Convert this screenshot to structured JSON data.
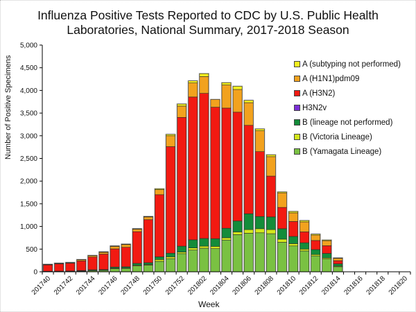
{
  "chart_data": {
    "type": "bar",
    "stacked": true,
    "title": "Influenza Positive Tests Reported to CDC by U.S. Public Health Laboratories, National Summary, 2017-2018 Season",
    "title_lines": [
      "Influenza Positive Tests Reported to CDC by U.S. Public Health",
      "Laboratories, National Summary, 2017-2018 Season"
    ],
    "xlabel": "Week",
    "ylabel": "Number of Positive Specimens",
    "ylim": [
      0,
      5000
    ],
    "yticks": [
      0,
      500,
      1000,
      1500,
      2000,
      2500,
      3000,
      3500,
      4000,
      4500,
      5000
    ],
    "ytick_labels": [
      "0",
      "500",
      "1,000",
      "1,500",
      "2,000",
      "2,500",
      "3,000",
      "3,500",
      "4,000",
      "4,500",
      "5,000"
    ],
    "grid": false,
    "legend_position": "top-right",
    "categories": [
      "201740",
      "201741",
      "201742",
      "201743",
      "201744",
      "201745",
      "201746",
      "201747",
      "201748",
      "201749",
      "201750",
      "201751",
      "201752",
      "201801",
      "201802",
      "201803",
      "201804",
      "201805",
      "201806",
      "201807",
      "201808",
      "201809",
      "201810",
      "201811",
      "201812",
      "201813",
      "201814",
      "201815",
      "201816",
      "201817",
      "201818",
      "201819",
      "201820"
    ],
    "xtick_labels": [
      "201740",
      "201742",
      "201744",
      "201746",
      "201748",
      "201750",
      "201752",
      "201802",
      "201804",
      "201806",
      "201808",
      "201810",
      "201812",
      "201814",
      "201816",
      "201818",
      "201820"
    ],
    "series": [
      {
        "name": "B (Yamagata Lineage)",
        "color": "#7ac142",
        "values": [
          5,
          8,
          10,
          15,
          25,
          30,
          70,
          75,
          130,
          145,
          230,
          290,
          400,
          480,
          520,
          510,
          700,
          820,
          850,
          860,
          840,
          650,
          570,
          460,
          350,
          280,
          110,
          0,
          0,
          0,
          0,
          0,
          0
        ]
      },
      {
        "name": "B (Victoria Lineage)",
        "color": "#d4e81c",
        "values": [
          2,
          2,
          3,
          4,
          5,
          5,
          10,
          10,
          15,
          15,
          40,
          40,
          35,
          45,
          45,
          50,
          50,
          60,
          80,
          90,
          90,
          70,
          50,
          40,
          30,
          25,
          15,
          0,
          0,
          0,
          0,
          0,
          0
        ]
      },
      {
        "name": "B (lineage not performed)",
        "color": "#138c3a",
        "values": [
          5,
          5,
          5,
          10,
          15,
          15,
          25,
          25,
          40,
          40,
          60,
          80,
          130,
          180,
          170,
          170,
          210,
          240,
          350,
          270,
          280,
          230,
          160,
          140,
          110,
          100,
          50,
          0,
          0,
          0,
          0,
          0,
          0
        ]
      },
      {
        "name": "H3N2v",
        "color": "#7b2fd6",
        "values": [
          0,
          0,
          0,
          0,
          0,
          0,
          0,
          0,
          0,
          0,
          0,
          0,
          0,
          0,
          0,
          0,
          0,
          0,
          0,
          0,
          0,
          0,
          0,
          0,
          0,
          0,
          0,
          0,
          0,
          0,
          0,
          0,
          0
        ]
      },
      {
        "name": "A (H3N2)",
        "color": "#f21a12",
        "values": [
          140,
          160,
          170,
          210,
          280,
          340,
          400,
          430,
          700,
          950,
          1370,
          2350,
          2840,
          3150,
          3200,
          2900,
          2650,
          2400,
          1950,
          1430,
          900,
          470,
          330,
          240,
          200,
          170,
          70,
          0,
          0,
          0,
          0,
          0,
          0
        ]
      },
      {
        "name": "A (H1N1)pdm09",
        "color": "#f2a21e",
        "values": [
          8,
          10,
          12,
          25,
          30,
          40,
          55,
          60,
          55,
          60,
          110,
          240,
          250,
          310,
          370,
          170,
          510,
          500,
          500,
          460,
          430,
          320,
          190,
          220,
          120,
          110,
          50,
          0,
          0,
          0,
          0,
          0,
          0
        ]
      },
      {
        "name": "A (subtyping not performed)",
        "color": "#f5f01e",
        "values": [
          5,
          5,
          5,
          6,
          5,
          10,
          10,
          10,
          10,
          10,
          20,
          30,
          45,
          45,
          65,
          0,
          50,
          70,
          50,
          40,
          40,
          20,
          30,
          30,
          20,
          15,
          10,
          0,
          0,
          0,
          0,
          0,
          0
        ]
      }
    ]
  },
  "legend": {
    "items": [
      {
        "label": "A (subtyping not performed)",
        "color": "#f5f01e"
      },
      {
        "label": "A (H1N1)pdm09",
        "color": "#f2a21e"
      },
      {
        "label": "A (H3N2)",
        "color": "#f21a12"
      },
      {
        "label": "H3N2v",
        "color": "#7b2fd6"
      },
      {
        "label": "B (lineage not performed)",
        "color": "#138c3a"
      },
      {
        "label": "B (Victoria Lineage)",
        "color": "#d4e81c"
      },
      {
        "label": "B (Yamagata Lineage)",
        "color": "#7ac142"
      }
    ]
  }
}
